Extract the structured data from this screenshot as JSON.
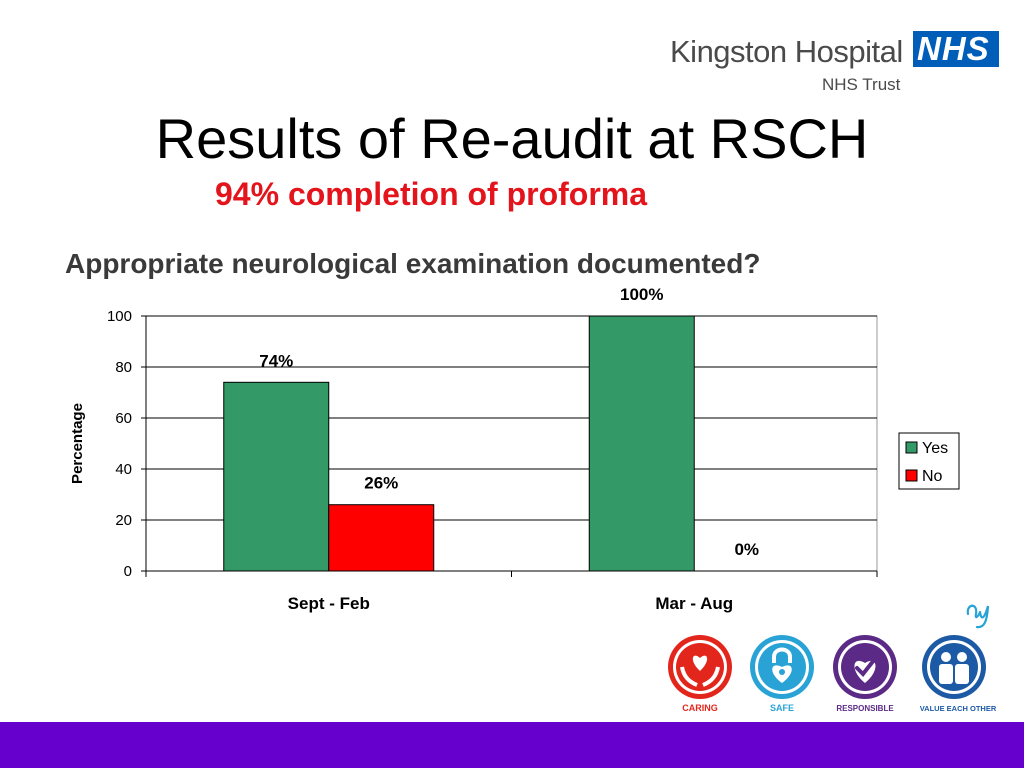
{
  "header": {
    "org_name": "Kingston Hospital",
    "org_sub": "NHS Trust",
    "nhs_badge": "NHS",
    "brand_color": "#005eb8"
  },
  "slide": {
    "title": "Results of Re-audit at RSCH",
    "subtitle": "94% completion of proforma",
    "question": "Appropriate neurological examination documented?"
  },
  "chart_data": {
    "type": "bar",
    "title": "Appropriate neurological examination documented?",
    "categories": [
      "Sept - Feb",
      "Mar - Aug"
    ],
    "series": [
      {
        "name": "Yes",
        "values": [
          74,
          100
        ],
        "labels": [
          "74%",
          "100%"
        ],
        "color": "#339966"
      },
      {
        "name": "No",
        "values": [
          26,
          0
        ],
        "labels": [
          "26%",
          "0%"
        ],
        "color": "#ff0000"
      }
    ],
    "xlabel": "",
    "ylabel": "Percentage",
    "ylim": [
      0,
      100
    ],
    "yticks": [
      0,
      20,
      40,
      60,
      80,
      100
    ],
    "grid": true,
    "legend_position": "right"
  },
  "footer": {
    "bar_color": "#6600cc",
    "values": [
      {
        "label": "CARING",
        "icon": "heart-hands-icon",
        "color": "#e2261c"
      },
      {
        "label": "SAFE",
        "icon": "lock-heart-icon",
        "color": "#29a3d6"
      },
      {
        "label": "RESPONSIBLE",
        "icon": "check-heart-icon",
        "color": "#5b2a86"
      },
      {
        "label": "VALUE EACH OTHER",
        "icon": "people-icon",
        "color": "#1d5aa6"
      }
    ]
  }
}
